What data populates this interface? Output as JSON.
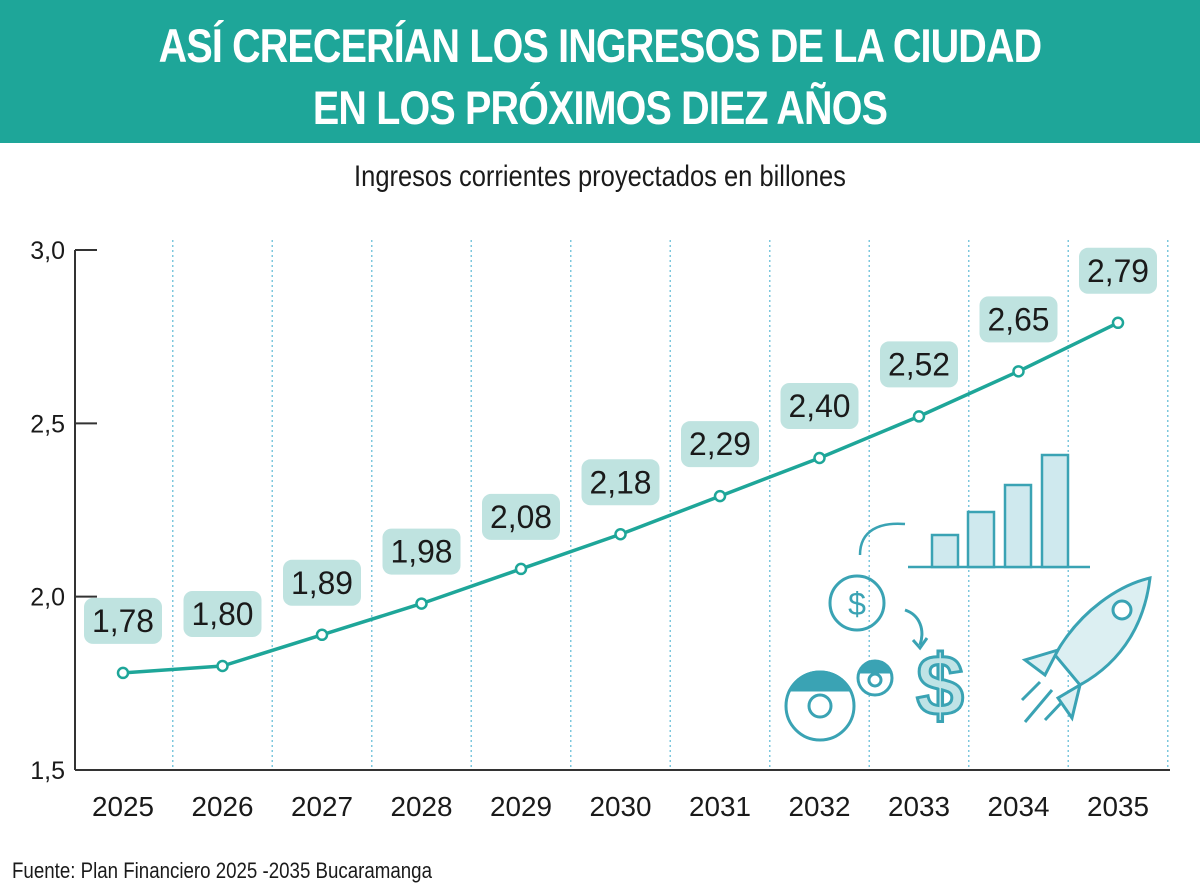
{
  "header": {
    "line1": "ASÍ CRECERÍAN LOS INGRESOS DE LA CIUDAD",
    "line2": "EN LOS PRÓXIMOS DIEZ AÑOS"
  },
  "source": "Fuente: Plan Financiero 2025 -2035 Bucaramanga",
  "colors": {
    "accent": "#1ea699",
    "label_bg": "#bfe3e0",
    "grid": "#7cc7dd",
    "illustration": "#3aa3b4"
  },
  "illustration_icons": [
    "bar-chart-icon",
    "coin-icon",
    "dollar-icon",
    "gear-icon",
    "rocket-icon"
  ],
  "chart_data": {
    "type": "line",
    "title": "Ingresos corrientes proyectados en billones",
    "xlabel": "",
    "ylabel": "",
    "categories": [
      "2025",
      "2026",
      "2027",
      "2028",
      "2029",
      "2030",
      "2031",
      "2032",
      "2033",
      "2034",
      "2035"
    ],
    "values": [
      1.78,
      1.8,
      1.89,
      1.98,
      2.08,
      2.18,
      2.29,
      2.4,
      2.52,
      2.65,
      2.79
    ],
    "data_labels": [
      "1,78",
      "1,80",
      "1,89",
      "1,98",
      "2,08",
      "2,18",
      "2,29",
      "2,40",
      "2,52",
      "2,65",
      "2,79"
    ],
    "y_ticks": [
      1.5,
      2.0,
      2.5,
      3.0
    ],
    "y_tick_labels": [
      "1,5",
      "2,0",
      "2,5",
      "3,0"
    ],
    "ylim": [
      1.5,
      3.0
    ],
    "grid": "vertical dotted",
    "legend": "none"
  }
}
